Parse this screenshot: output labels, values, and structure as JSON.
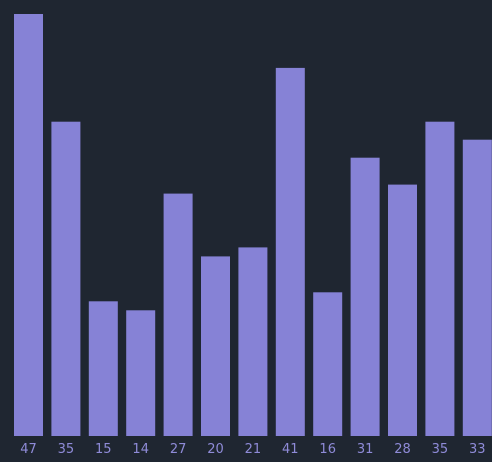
{
  "colors": {
    "background": "#1f2631",
    "bar": "#8682d6",
    "label": "#8f8bd8"
  },
  "chart_data": {
    "type": "bar",
    "categories": [
      "47",
      "35",
      "15",
      "14",
      "27",
      "20",
      "21",
      "41",
      "16",
      "31",
      "28",
      "35",
      "33"
    ],
    "values": [
      47,
      35,
      15,
      14,
      27,
      20,
      21,
      41,
      16,
      31,
      28,
      35,
      33
    ],
    "title": "",
    "xlabel": "",
    "ylabel": "",
    "ylim": [
      0,
      47
    ],
    "grid": false,
    "legend": "none"
  }
}
